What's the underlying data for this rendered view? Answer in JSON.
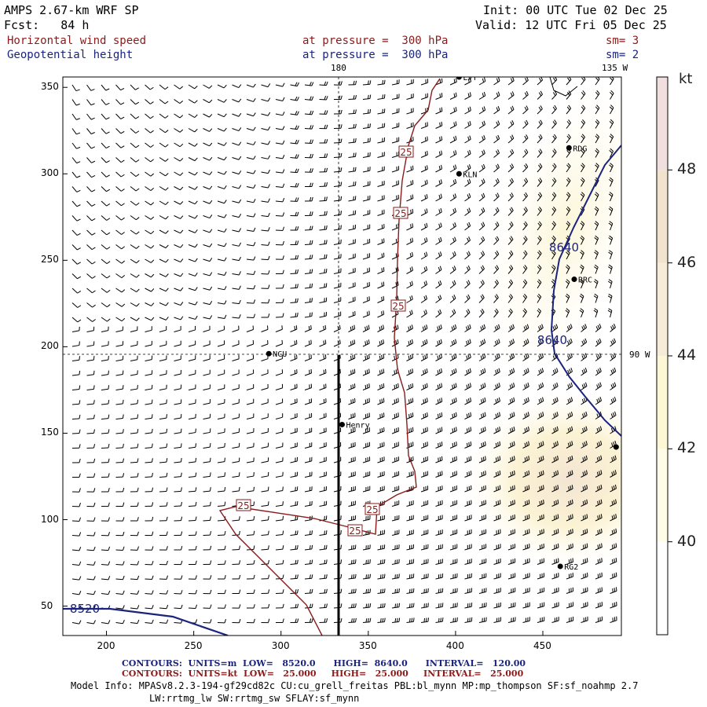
{
  "header": {
    "model": "AMPS 2.67-km WRF SP",
    "init": "Init: 00 UTC Tue 02 Dec 25",
    "forecast": "Fcst:   84 h",
    "valid": "Valid: 12 UTC Fri 05 Dec 25"
  },
  "fields": {
    "wind": {
      "label": "Horizontal wind speed",
      "pressure": "at pressure =  300 hPa",
      "sm": "sm= 3"
    },
    "height": {
      "label": "Geopotential height",
      "pressure": "at pressure =  300 hPa",
      "sm": "sm= 2"
    }
  },
  "map": {
    "x_ticks": [
      "200",
      "250",
      "300",
      "350",
      "400",
      "450"
    ],
    "y_ticks": [
      "350",
      "300",
      "250",
      "200",
      "150",
      "100",
      "50"
    ],
    "x_range": [
      175,
      495
    ],
    "y_range": [
      33,
      356
    ],
    "meridian_labels": {
      "top_180": "180",
      "top_135w": "135 W",
      "right_90w": "90 W"
    },
    "stations": [
      {
        "name": "LVT",
        "x": 402,
        "y": 356
      },
      {
        "name": "RDG",
        "x": 465,
        "y": 315
      },
      {
        "name": "KLN",
        "x": 402,
        "y": 300
      },
      {
        "name": "RRC",
        "x": 468,
        "y": 239
      },
      {
        "name": "NCU",
        "x": 293,
        "y": 196
      },
      {
        "name": "Henry",
        "x": 335,
        "y": 155
      },
      {
        "name": "",
        "x": 492,
        "y": 142
      },
      {
        "name": "RG2",
        "x": 460,
        "y": 73
      }
    ],
    "wind_contour_label": "25",
    "height_labels": [
      "8640",
      "8640",
      "8520"
    ],
    "colors": {
      "wind_contour": "#8b1a1a",
      "height_contour": "#1a237e",
      "shade_light": "#fbf3cf",
      "shade_mid": "#f2e3cd"
    }
  },
  "colorbar": {
    "unit": "kt",
    "labels": [
      "48",
      "46",
      "44",
      "42",
      "40"
    ],
    "bands": [
      {
        "from": 38,
        "to": 40,
        "color": "#ffffff"
      },
      {
        "from": 40,
        "to": 42,
        "color": "#fffde8"
      },
      {
        "from": 42,
        "to": 44,
        "color": "#fdf7d5"
      },
      {
        "from": 44,
        "to": 46,
        "color": "#f7ecd7"
      },
      {
        "from": 46,
        "to": 48,
        "color": "#f2e3cf"
      },
      {
        "from": 48,
        "to": 50,
        "color": "#f1dede"
      }
    ]
  },
  "footer": {
    "contours1": "CONTOURS:  UNITS=m  LOW=   8520.0      HIGH=  8640.0      INTERVAL=   120.00",
    "contours2": "CONTOURS:  UNITS=kt  LOW=   25.000     HIGH=   25.000     INTERVAL=   25.000",
    "model_info": "Model Info: MPASv8.2.3-194-gf29cd82c CU:cu_grell_freitas PBL:bl_mynn MP:mp_thompson SF:sf_noahmp 2.7",
    "model_info2": "LW:rrtmg_lw SW:rrtmg_sw SFLAY:sf_mynn"
  }
}
